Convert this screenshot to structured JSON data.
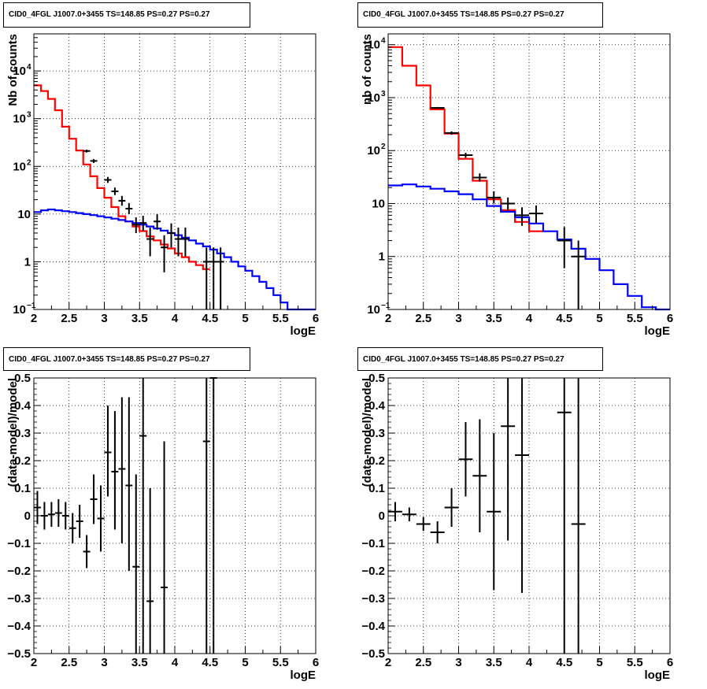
{
  "charts": [
    {
      "title": "CID0_4FGL J1007.0+3455 TS=148.85 PS=0.27 PS=0.27",
      "xlabel": "logE",
      "ylabel": "Nb of counts",
      "type": "histogram",
      "log_y": true,
      "xlim": [
        2,
        6
      ],
      "ylim": [
        0.1,
        60000
      ],
      "x_ticks": [
        "2",
        "2.5",
        "3",
        "3.5",
        "4",
        "4.5",
        "5",
        "5.5",
        "6"
      ],
      "y_ticks": [
        {
          "value": 0.1,
          "label": "10",
          "sup": "−1"
        },
        {
          "value": 1,
          "label": "1",
          "sup": ""
        },
        {
          "value": 10,
          "label": "10",
          "sup": ""
        },
        {
          "value": 100,
          "label": "10",
          "sup": "2"
        },
        {
          "value": 1000,
          "label": "10",
          "sup": "3"
        },
        {
          "value": 10000,
          "label": "10",
          "sup": "4"
        }
      ],
      "grid": true,
      "series": [
        {
          "color": "#ff0000",
          "bin_width": 0.1,
          "x_start": 2.0,
          "values": [
            5000,
            3800,
            2600,
            1500,
            680,
            380,
            215,
            110,
            62,
            35,
            22,
            14,
            9,
            7,
            5.5,
            4.4,
            3.4,
            2.8,
            2.3,
            1.9,
            1.5,
            1.25,
            1.0,
            0.85,
            0.7
          ]
        },
        {
          "color": "#0000ff",
          "bin_width": 0.1,
          "x_start": 2.0,
          "values": [
            11,
            12,
            12.5,
            12,
            11.5,
            11,
            10.5,
            10,
            9.5,
            9,
            8.5,
            8,
            7.5,
            7,
            6.5,
            6,
            5.5,
            5,
            4.5,
            4,
            3.6,
            3.2,
            2.8,
            2.4,
            2.1,
            1.8,
            1.5,
            1.25,
            1.0,
            0.8,
            0.65,
            0.5,
            0.38,
            0.28,
            0.2,
            0.14,
            0.1,
            0.1,
            0.1,
            0.1
          ]
        }
      ],
      "points": [
        {
          "x": 2.75,
          "y": 210,
          "xerr": 0.05,
          "ylo": 195,
          "yhi": 225
        },
        {
          "x": 2.85,
          "y": 130,
          "xerr": 0.05,
          "ylo": 118,
          "yhi": 142
        },
        {
          "x": 3.05,
          "y": 52,
          "xerr": 0.05,
          "ylo": 45,
          "yhi": 60
        },
        {
          "x": 3.15,
          "y": 30,
          "xerr": 0.05,
          "ylo": 25,
          "yhi": 36
        },
        {
          "x": 3.25,
          "y": 19,
          "xerr": 0.05,
          "ylo": 15,
          "yhi": 24
        },
        {
          "x": 3.35,
          "y": 13,
          "xerr": 0.05,
          "ylo": 10,
          "yhi": 17
        },
        {
          "x": 3.45,
          "y": 6,
          "xerr": 0.05,
          "ylo": 4,
          "yhi": 8.5
        },
        {
          "x": 3.55,
          "y": 6.5,
          "xerr": 0.05,
          "ylo": 4.4,
          "yhi": 9.2
        },
        {
          "x": 3.65,
          "y": 3,
          "xerr": 0.05,
          "ylo": 1.3,
          "yhi": 5.2
        },
        {
          "x": 3.75,
          "y": 7,
          "xerr": 0.05,
          "ylo": 4.7,
          "yhi": 9.9
        },
        {
          "x": 3.85,
          "y": 2,
          "xerr": 0.05,
          "ylo": 0.6,
          "yhi": 3.6
        },
        {
          "x": 3.95,
          "y": 4,
          "xerr": 0.05,
          "ylo": 2,
          "yhi": 6.4
        },
        {
          "x": 4.05,
          "y": 3,
          "xerr": 0.05,
          "ylo": 1.3,
          "yhi": 5.2
        },
        {
          "x": 4.15,
          "y": 3,
          "xerr": 0.05,
          "ylo": 1.3,
          "yhi": 5.2
        },
        {
          "x": 4.45,
          "y": 1,
          "xerr": 0.05,
          "ylo": 0.1,
          "yhi": 2
        },
        {
          "x": 4.55,
          "y": 1,
          "xerr": 0.05,
          "ylo": 0.1,
          "yhi": 2
        },
        {
          "x": 4.65,
          "y": 1,
          "xerr": 0.05,
          "ylo": 0.1,
          "yhi": 2
        }
      ]
    },
    {
      "title": "CID0_4FGL J1007.0+3455 TS=148.85 PS=0.27 PS=0.27",
      "xlabel": "logE",
      "ylabel": "nb of counts",
      "type": "histogram",
      "log_y": true,
      "xlim": [
        2,
        6
      ],
      "ylim": [
        0.1,
        16000
      ],
      "x_ticks": [
        "2",
        "2.5",
        "3",
        "3.5",
        "4",
        "4.5",
        "5",
        "5.5",
        "6"
      ],
      "y_ticks": [
        {
          "value": 0.1,
          "label": "10",
          "sup": "−1"
        },
        {
          "value": 1,
          "label": "1",
          "sup": ""
        },
        {
          "value": 10,
          "label": "10",
          "sup": ""
        },
        {
          "value": 100,
          "label": "10",
          "sup": "2"
        },
        {
          "value": 1000,
          "label": "10",
          "sup": "3"
        },
        {
          "value": 10000,
          "label": "10",
          "sup": "4"
        }
      ],
      "grid": true,
      "series": [
        {
          "color": "#ff0000",
          "bin_width": 0.2,
          "x_start": 2.0,
          "values": [
            9000,
            4000,
            1700,
            600,
            210,
            70,
            27,
            12,
            7.5,
            4.5,
            3.0
          ]
        },
        {
          "color": "#0000ff",
          "bin_width": 0.2,
          "x_start": 2.0,
          "values": [
            22,
            23,
            21,
            19,
            17,
            15,
            12,
            9,
            7,
            5.5,
            4.2,
            3.0,
            2.1,
            1.4,
            0.9,
            0.55,
            0.3,
            0.18,
            0.11,
            0.1
          ]
        }
      ],
      "points": [
        {
          "x": 2.7,
          "y": 640,
          "xerr": 0.1,
          "ylo": 615,
          "yhi": 665
        },
        {
          "x": 2.9,
          "y": 215,
          "xerr": 0.1,
          "ylo": 200,
          "yhi": 230
        },
        {
          "x": 3.1,
          "y": 82,
          "xerr": 0.1,
          "ylo": 73,
          "yhi": 91
        },
        {
          "x": 3.3,
          "y": 31,
          "xerr": 0.1,
          "ylo": 26,
          "yhi": 37
        },
        {
          "x": 3.5,
          "y": 13,
          "xerr": 0.1,
          "ylo": 10,
          "yhi": 17
        },
        {
          "x": 3.7,
          "y": 10,
          "xerr": 0.1,
          "ylo": 7.2,
          "yhi": 13
        },
        {
          "x": 3.9,
          "y": 6,
          "xerr": 0.1,
          "ylo": 3.8,
          "yhi": 8.5
        },
        {
          "x": 4.1,
          "y": 6.5,
          "xerr": 0.1,
          "ylo": 4.2,
          "yhi": 9.2
        },
        {
          "x": 4.5,
          "y": 2,
          "xerr": 0.1,
          "ylo": 0.6,
          "yhi": 3.6
        },
        {
          "x": 4.7,
          "y": 1,
          "xerr": 0.1,
          "ylo": 0.1,
          "yhi": 2
        }
      ]
    },
    {
      "title": "CID0_4FGL J1007.0+3455 TS=148.85 PS=0.27 PS=0.27",
      "xlabel": "logE",
      "ylabel": "(data-model)/model",
      "type": "scatter",
      "log_y": false,
      "xlim": [
        2,
        6
      ],
      "ylim": [
        -0.5,
        0.5
      ],
      "x_ticks": [
        "2",
        "2.5",
        "3",
        "3.5",
        "4",
        "4.5",
        "5",
        "5.5",
        "6"
      ],
      "y_ticks": [
        {
          "value": -0.5,
          "label": "−0.5",
          "sup": ""
        },
        {
          "value": -0.4,
          "label": "−0.4",
          "sup": ""
        },
        {
          "value": -0.3,
          "label": "−0.3",
          "sup": ""
        },
        {
          "value": -0.2,
          "label": "−0.2",
          "sup": ""
        },
        {
          "value": -0.1,
          "label": "−0.1",
          "sup": ""
        },
        {
          "value": 0,
          "label": "0",
          "sup": ""
        },
        {
          "value": 0.1,
          "label": "0.1",
          "sup": ""
        },
        {
          "value": 0.2,
          "label": "0.2",
          "sup": ""
        },
        {
          "value": 0.3,
          "label": "0.3",
          "sup": ""
        },
        {
          "value": 0.4,
          "label": "0.4",
          "sup": ""
        },
        {
          "value": 0.5,
          "label": "0.5",
          "sup": ""
        }
      ],
      "grid": true,
      "series": [],
      "points": [
        {
          "x": 2.05,
          "y": 0.03,
          "xerr": 0.05,
          "ylo": -0.03,
          "yhi": 0.09
        },
        {
          "x": 2.15,
          "y": 0.0,
          "xerr": 0.05,
          "ylo": -0.05,
          "yhi": 0.05
        },
        {
          "x": 2.25,
          "y": 0.005,
          "xerr": 0.05,
          "ylo": -0.04,
          "yhi": 0.05
        },
        {
          "x": 2.35,
          "y": 0.01,
          "xerr": 0.05,
          "ylo": -0.04,
          "yhi": 0.06
        },
        {
          "x": 2.45,
          "y": 0.0,
          "xerr": 0.05,
          "ylo": -0.05,
          "yhi": 0.05
        },
        {
          "x": 2.55,
          "y": -0.045,
          "xerr": 0.05,
          "ylo": -0.1,
          "yhi": 0.01
        },
        {
          "x": 2.65,
          "y": -0.02,
          "xerr": 0.05,
          "ylo": -0.08,
          "yhi": 0.04
        },
        {
          "x": 2.75,
          "y": -0.13,
          "xerr": 0.05,
          "ylo": -0.19,
          "yhi": -0.07
        },
        {
          "x": 2.85,
          "y": 0.06,
          "xerr": 0.05,
          "ylo": -0.03,
          "yhi": 0.15
        },
        {
          "x": 2.95,
          "y": -0.01,
          "xerr": 0.05,
          "ylo": -0.13,
          "yhi": 0.11
        },
        {
          "x": 3.05,
          "y": 0.23,
          "xerr": 0.05,
          "ylo": 0.07,
          "yhi": 0.4
        },
        {
          "x": 3.15,
          "y": 0.16,
          "xerr": 0.05,
          "ylo": -0.05,
          "yhi": 0.38
        },
        {
          "x": 3.25,
          "y": 0.17,
          "xerr": 0.05,
          "ylo": -0.1,
          "yhi": 0.43
        },
        {
          "x": 3.35,
          "y": 0.11,
          "xerr": 0.05,
          "ylo": -0.2,
          "yhi": 0.43
        },
        {
          "x": 3.45,
          "y": -0.185,
          "xerr": 0.05,
          "ylo": -0.5,
          "yhi": 0.15
        },
        {
          "x": 3.55,
          "y": 0.29,
          "xerr": 0.05,
          "ylo": -0.5,
          "yhi": 0.5
        },
        {
          "x": 3.65,
          "y": -0.31,
          "xerr": 0.05,
          "ylo": -0.5,
          "yhi": 0.1
        },
        {
          "x": 3.85,
          "y": -0.26,
          "xerr": 0.05,
          "ylo": -0.5,
          "yhi": 0.27
        },
        {
          "x": 4.45,
          "y": 0.27,
          "xerr": 0.05,
          "ylo": -0.5,
          "yhi": 0.5
        },
        {
          "x": 4.55,
          "y": 0.5,
          "xerr": 0.05,
          "ylo": -0.5,
          "yhi": 0.5
        }
      ]
    },
    {
      "title": "CID0_4FGL J1007.0+3455 TS=148.85 PS=0.27 PS=0.27",
      "xlabel": "logE",
      "ylabel": "(data-model)/model",
      "type": "scatter",
      "log_y": false,
      "xlim": [
        2,
        6
      ],
      "ylim": [
        -0.5,
        0.5
      ],
      "x_ticks": [
        "2",
        "2.5",
        "3",
        "3.5",
        "4",
        "4.5",
        "5",
        "5.5",
        "6"
      ],
      "y_ticks": [
        {
          "value": -0.5,
          "label": "−0.5",
          "sup": ""
        },
        {
          "value": -0.4,
          "label": "−0.4",
          "sup": ""
        },
        {
          "value": -0.3,
          "label": "−0.3",
          "sup": ""
        },
        {
          "value": -0.2,
          "label": "−0.2",
          "sup": ""
        },
        {
          "value": -0.1,
          "label": "−0.1",
          "sup": ""
        },
        {
          "value": 0,
          "label": "0",
          "sup": ""
        },
        {
          "value": 0.1,
          "label": "0.1",
          "sup": ""
        },
        {
          "value": 0.2,
          "label": "0.2",
          "sup": ""
        },
        {
          "value": 0.3,
          "label": "0.3",
          "sup": ""
        },
        {
          "value": 0.4,
          "label": "0.4",
          "sup": ""
        },
        {
          "value": 0.5,
          "label": "0.5",
          "sup": ""
        }
      ],
      "grid": true,
      "series": [],
      "points": [
        {
          "x": 2.1,
          "y": 0.015,
          "xerr": 0.1,
          "ylo": -0.02,
          "yhi": 0.05
        },
        {
          "x": 2.3,
          "y": 0.005,
          "xerr": 0.1,
          "ylo": -0.02,
          "yhi": 0.03
        },
        {
          "x": 2.5,
          "y": -0.03,
          "xerr": 0.1,
          "ylo": -0.055,
          "yhi": -0.005
        },
        {
          "x": 2.7,
          "y": -0.06,
          "xerr": 0.1,
          "ylo": -0.1,
          "yhi": -0.02
        },
        {
          "x": 2.9,
          "y": 0.03,
          "xerr": 0.1,
          "ylo": -0.04,
          "yhi": 0.1
        },
        {
          "x": 3.1,
          "y": 0.205,
          "xerr": 0.1,
          "ylo": 0.07,
          "yhi": 0.34
        },
        {
          "x": 3.3,
          "y": 0.145,
          "xerr": 0.1,
          "ylo": -0.06,
          "yhi": 0.35
        },
        {
          "x": 3.5,
          "y": 0.015,
          "xerr": 0.1,
          "ylo": -0.27,
          "yhi": 0.3
        },
        {
          "x": 3.7,
          "y": 0.325,
          "xerr": 0.1,
          "ylo": -0.09,
          "yhi": 0.5
        },
        {
          "x": 3.9,
          "y": 0.22,
          "xerr": 0.1,
          "ylo": -0.28,
          "yhi": 0.5
        },
        {
          "x": 4.5,
          "y": 0.375,
          "xerr": 0.1,
          "ylo": -0.5,
          "yhi": 0.5
        },
        {
          "x": 4.7,
          "y": -0.03,
          "xerr": 0.1,
          "ylo": -0.5,
          "yhi": 0.5
        }
      ]
    }
  ],
  "chart_data": [
    {
      "type": "line",
      "title": "CID0_4FGL J1007.0+3455 TS=148.85 PS=0.27 PS=0.27",
      "xlabel": "logE",
      "ylabel": "Nb of counts",
      "log_y": true,
      "xlim": [
        2,
        6
      ],
      "ylim": [
        0.1,
        60000
      ]
    },
    {
      "type": "line",
      "title": "CID0_4FGL J1007.0+3455 TS=148.85 PS=0.27 PS=0.27",
      "xlabel": "logE",
      "ylabel": "nb of counts",
      "log_y": true,
      "xlim": [
        2,
        6
      ],
      "ylim": [
        0.1,
        16000
      ]
    },
    {
      "type": "scatter",
      "title": "CID0_4FGL J1007.0+3455 TS=148.85 PS=0.27 PS=0.27",
      "xlabel": "logE",
      "ylabel": "(data-model)/model",
      "xlim": [
        2,
        6
      ],
      "ylim": [
        -0.5,
        0.5
      ]
    },
    {
      "type": "scatter",
      "title": "CID0_4FGL J1007.0+3455 TS=148.85 PS=0.27 PS=0.27",
      "xlabel": "logE",
      "ylabel": "(data-model)/model",
      "xlim": [
        2,
        6
      ],
      "ylim": [
        -0.5,
        0.5
      ]
    }
  ]
}
